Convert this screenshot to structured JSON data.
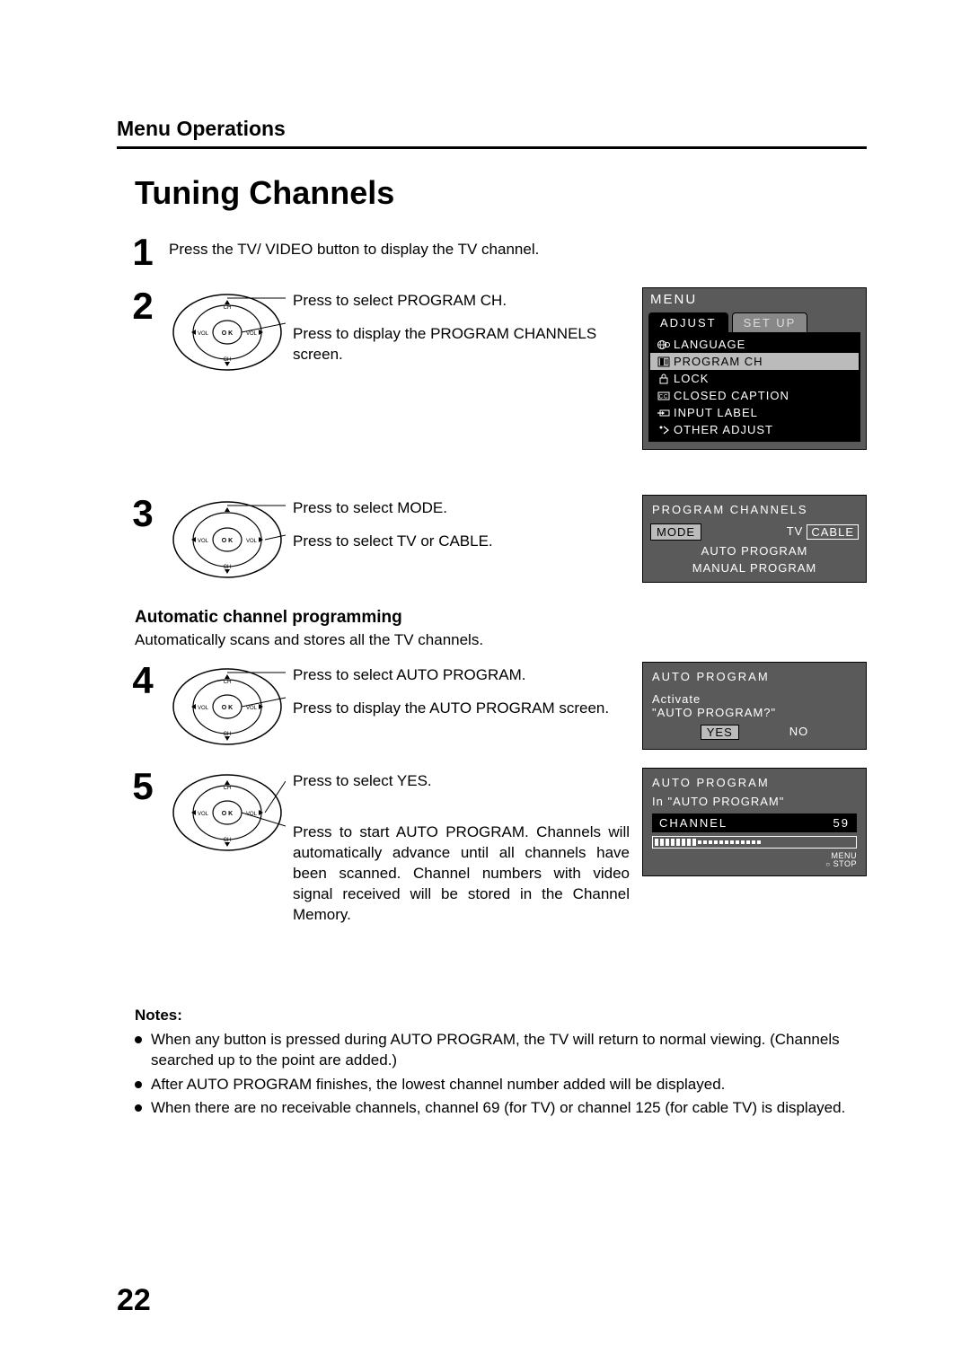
{
  "header": {
    "section": "Menu Operations",
    "title": "Tuning Channels"
  },
  "steps": {
    "s1": {
      "num": "1",
      "line1": "Press the TV/ VIDEO button to display the TV channel."
    },
    "s2": {
      "num": "2",
      "line1": "Press to select PROGRAM CH.",
      "line2": "Press to display the PROGRAM CHANNELS screen."
    },
    "s3": {
      "num": "3",
      "line1": "Press to select MODE.",
      "line2": "Press to select TV or CABLE."
    },
    "s4": {
      "num": "4",
      "line1": "Press to select AUTO PROGRAM.",
      "line2": "Press to display the AUTO PROGRAM screen."
    },
    "s5": {
      "num": "5",
      "line1": "Press to select YES.",
      "line2": "Press to start AUTO PROGRAM. Channels will automatically advance until all channels have been scanned. Channel numbers with video signal received will be stored in the Channel Memory."
    }
  },
  "auto_section": {
    "heading": "Automatic channel programming",
    "desc": "Automatically scans and stores all the TV channels."
  },
  "osd_menu": {
    "title": "MENU",
    "tabs": {
      "active": "ADJUST",
      "inactive": "SET UP"
    },
    "items": [
      "LANGUAGE",
      "PROGRAM CH",
      "LOCK",
      "CLOSED CAPTION",
      "INPUT LABEL",
      "OTHER ADJUST"
    ],
    "highlight_index": 1,
    "colors": {
      "panel_bg": "#5a5a5a",
      "list_bg": "#000000",
      "highlight_bg": "#bbbbbb",
      "text": "#ffffff"
    }
  },
  "osd_program_channels": {
    "title": "PROGRAM CHANNELS",
    "mode_label": "MODE",
    "mode_options": [
      "TV",
      "CABLE"
    ],
    "mode_selected": "CABLE",
    "rows": [
      "AUTO PROGRAM",
      "MANUAL PROGRAM"
    ]
  },
  "osd_auto_confirm": {
    "title": "AUTO PROGRAM",
    "line1": "Activate",
    "line2": "\"AUTO PROGRAM?\"",
    "yes": "YES",
    "no": "NO"
  },
  "osd_auto_progress": {
    "title": "AUTO PROGRAM",
    "subtitle": "In \"AUTO PROGRAM\"",
    "channel_label": "CHANNEL",
    "channel_value": "59",
    "progress_filled": 8,
    "progress_total": 20,
    "menu_stop_label": "MENU",
    "stop_label": "STOP"
  },
  "notes": {
    "heading": "Notes:",
    "items": [
      "When any button is pressed during AUTO PROGRAM, the TV will return to normal viewing. (Channels searched up to the point are added.)",
      "After AUTO PROGRAM finishes, the lowest channel number added will be displayed.",
      "When there are no receivable channels, channel 69 (for TV) or channel 125 (for cable TV) is displayed."
    ]
  },
  "page_number": "22",
  "remote_labels": {
    "ch": "CH",
    "vol": "VOL",
    "ok": "O K"
  }
}
